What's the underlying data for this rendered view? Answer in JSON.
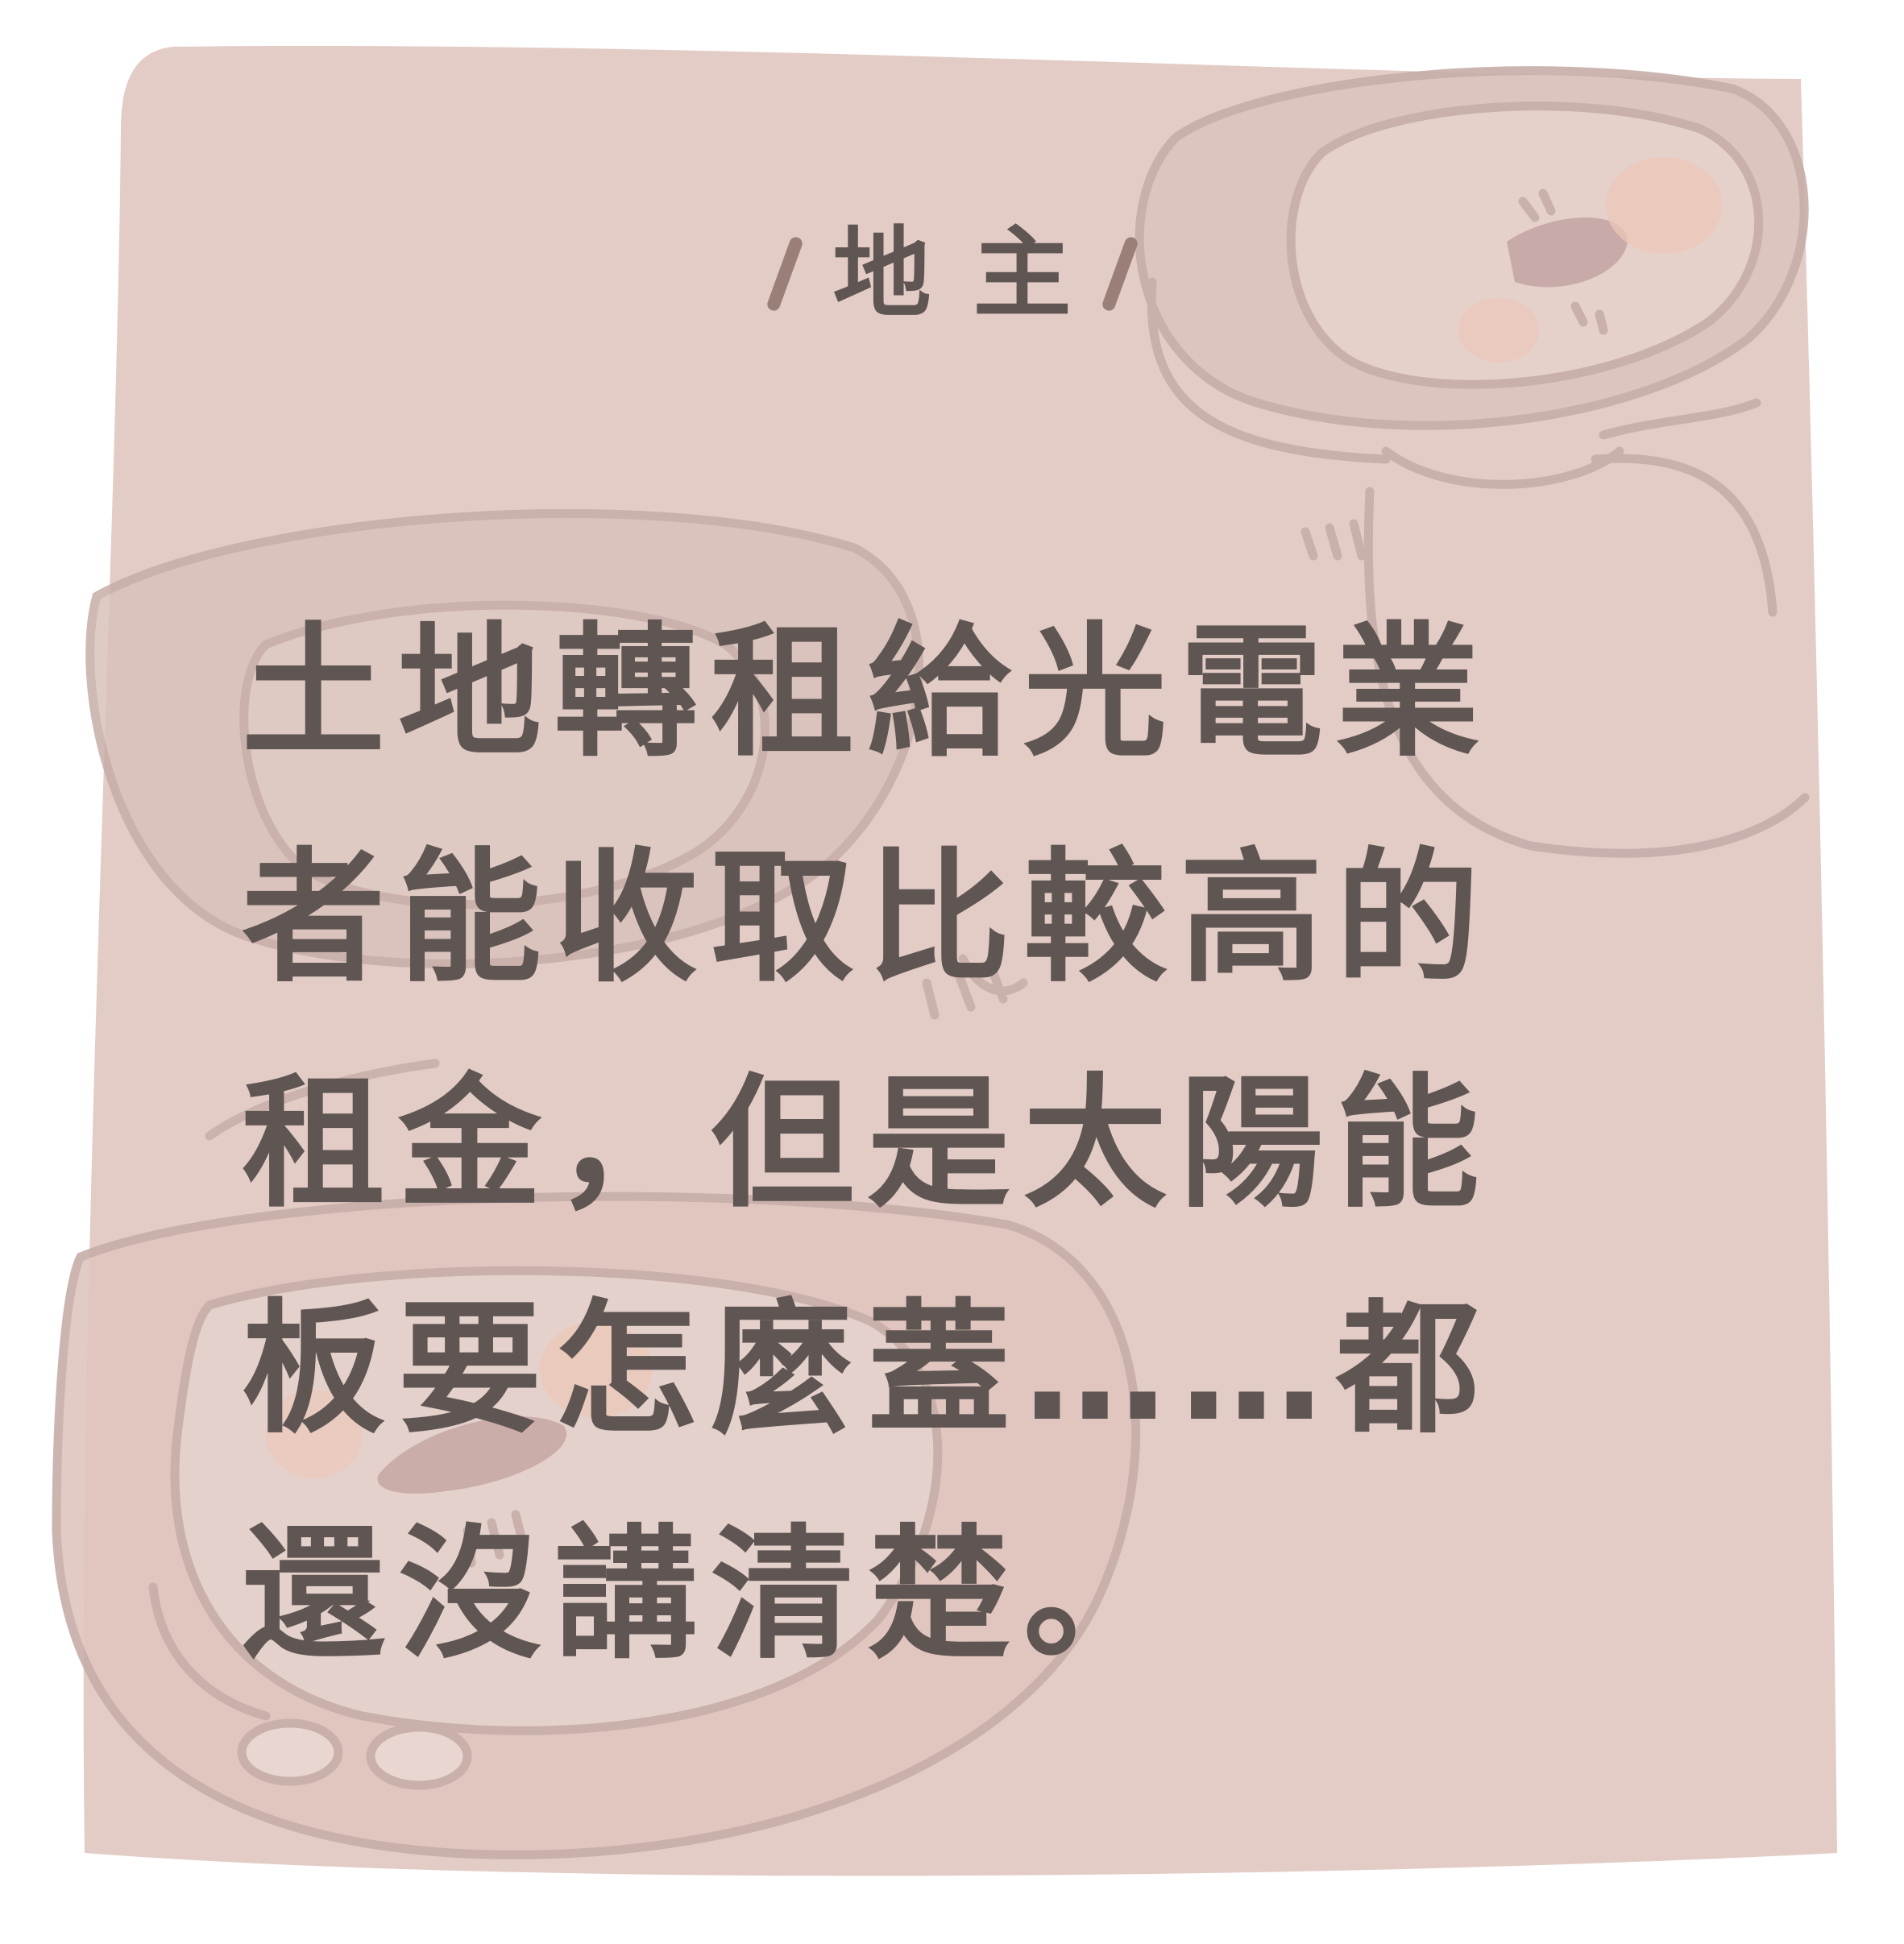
{
  "card": {
    "speaker": "地主",
    "quote": "土地轉租給光電業者能收取比較高的租金，但是太陽能板要怎麼蓋……都還沒講清楚。"
  },
  "colors": {
    "background": "#ffffff",
    "card_fill": "#e3ccc6",
    "card_shade": "#d9c2bb",
    "sketch_line": "#c7ada8",
    "blush": "#ecc7b7",
    "slash": "#9a7f78",
    "text": "#5f5553"
  },
  "illustration": {
    "icons": [
      "sleeping-creature-illustration",
      "sleeping-creature-illustration",
      "sleeping-creature-illustration"
    ]
  }
}
